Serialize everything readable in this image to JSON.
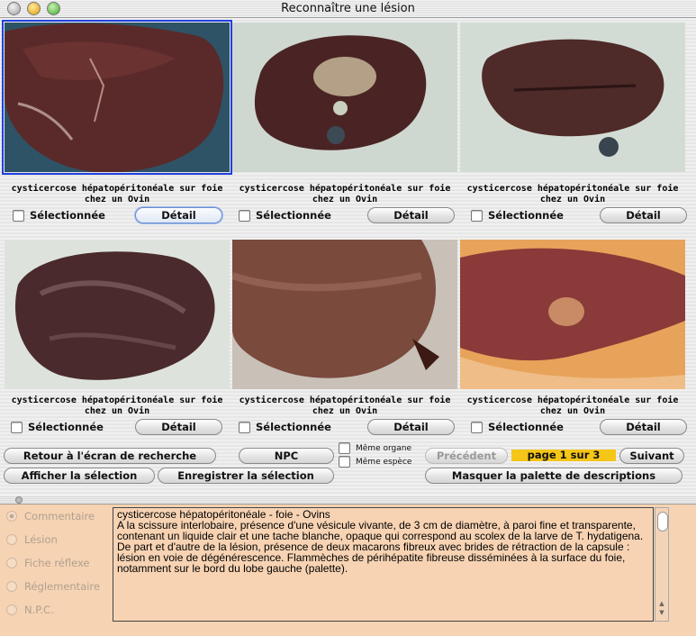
{
  "window": {
    "title": "Reconnaître une lésion"
  },
  "cells": [
    {
      "caption": "cysticercose hépatopéritonéale sur foie chez un Ovin",
      "checkbox": "Sélectionnée",
      "detail": "Détail"
    },
    {
      "caption": "cysticercose hépatopéritonéale sur foie chez un Ovin",
      "checkbox": "Sélectionnée",
      "detail": "Détail"
    },
    {
      "caption": "cysticercose hépatopéritonéale sur foie chez un Ovin",
      "checkbox": "Sélectionnée",
      "detail": "Détail"
    },
    {
      "caption": "cysticercose hépatopéritonéale sur foie chez un Ovin",
      "checkbox": "Sélectionnée",
      "detail": "Détail"
    },
    {
      "caption": "cysticercose hépatopéritonéale sur foie chez un Ovin",
      "checkbox": "Sélectionnée",
      "detail": "Détail"
    },
    {
      "caption": "cysticercose hépatopéritonéale sur foie chez un Ovin",
      "checkbox": "Sélectionnée",
      "detail": "Détail"
    }
  ],
  "controls": {
    "retour": "Retour à l'écran de recherche",
    "afficher": "Afficher la sélection",
    "npc": "NPC",
    "enregistrer": "Enregistrer la sélection",
    "meme_organe": "Même organe",
    "meme_espece": "Même espèce",
    "precedent": "Précédent",
    "page": "page 1 sur 3",
    "suivant": "Suivant",
    "masquer": "Masquer la palette de descriptions"
  },
  "palette": {
    "options": [
      "Commentaire",
      "Lésion",
      "Fiche réflexe",
      "Réglementaire",
      "N.P.C."
    ],
    "selected": "Commentaire",
    "desc_title": "cysticercose hépatopéritonéale - foie - Ovins",
    "desc_p1": "A la scissure interlobaire, présence d'une vésicule vivante, de 3 cm de diamètre, à paroi fine et transparente, contenant un liquide clair et une tache blanche, opaque qui correspond au scolex de la larve de T. hydatigena.",
    "desc_p2": "De part et d'autre de la lésion, présence de deux macarons fibreux avec brides de rétraction de la capsule : lésion en voie de dégénérescence. Flammèches de périhépatite fibreuse disséminées à la surface du foie, notamment sur le bord du lobe gauche (palette)."
  },
  "colors": {
    "accent_selected": "#2040e0",
    "page_badge": "#f5c518",
    "palette_bg": "#f6d3b3"
  }
}
